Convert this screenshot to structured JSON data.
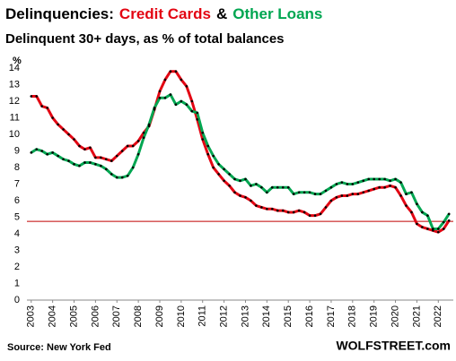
{
  "chart_data": {
    "type": "line",
    "title_parts": [
      {
        "text": "Delinquencies:",
        "color": "#000000"
      },
      {
        "text": "Credit Cards",
        "color": "#e30613"
      },
      {
        "text": "&",
        "color": "#000000"
      },
      {
        "text": "Other Loans",
        "color": "#00a651"
      }
    ],
    "subtitle": "Delinquent 30+ days, as % of total balances",
    "y_label": "%",
    "source": "Source: New York Fed",
    "credit": "WOLFSTREET.com",
    "x": [
      2003,
      2003.25,
      2003.5,
      2003.75,
      2004,
      2004.25,
      2004.5,
      2004.75,
      2005,
      2005.25,
      2005.5,
      2005.75,
      2006,
      2006.25,
      2006.5,
      2006.75,
      2007,
      2007.25,
      2007.5,
      2007.75,
      2008,
      2008.25,
      2008.5,
      2008.75,
      2009,
      2009.25,
      2009.5,
      2009.75,
      2010,
      2010.25,
      2010.5,
      2010.75,
      2011,
      2011.25,
      2011.5,
      2011.75,
      2012,
      2012.25,
      2012.5,
      2012.75,
      2013,
      2013.25,
      2013.5,
      2013.75,
      2014,
      2014.25,
      2014.5,
      2014.75,
      2015,
      2015.25,
      2015.5,
      2015.75,
      2016,
      2016.25,
      2016.5,
      2016.75,
      2017,
      2017.25,
      2017.5,
      2017.75,
      2018,
      2018.25,
      2018.5,
      2018.75,
      2019,
      2019.25,
      2019.5,
      2019.75,
      2020,
      2020.25,
      2020.5,
      2020.75,
      2021,
      2021.25,
      2021.5,
      2021.75,
      2022,
      2022.25,
      2022.5
    ],
    "series": [
      {
        "name": "Credit Cards",
        "color": "#e30613",
        "values": [
          12.3,
          12.3,
          11.7,
          11.6,
          11.0,
          10.6,
          10.3,
          10.0,
          9.7,
          9.3,
          9.1,
          9.2,
          8.6,
          8.6,
          8.5,
          8.4,
          8.7,
          9.0,
          9.3,
          9.3,
          9.6,
          10.1,
          10.5,
          11.5,
          12.6,
          13.3,
          13.8,
          13.8,
          13.3,
          12.9,
          12.0,
          10.9,
          9.7,
          8.8,
          8.0,
          7.6,
          7.2,
          6.9,
          6.5,
          6.3,
          6.2,
          6.0,
          5.7,
          5.6,
          5.5,
          5.5,
          5.4,
          5.4,
          5.3,
          5.3,
          5.4,
          5.3,
          5.1,
          5.1,
          5.2,
          5.6,
          6.0,
          6.2,
          6.3,
          6.3,
          6.4,
          6.4,
          6.5,
          6.6,
          6.7,
          6.8,
          6.8,
          6.9,
          6.8,
          6.3,
          5.7,
          5.3,
          4.6,
          4.4,
          4.3,
          4.2,
          4.1,
          4.3,
          4.8
        ]
      },
      {
        "name": "Other Loans",
        "color": "#00a651",
        "values": [
          8.9,
          9.1,
          9.0,
          8.8,
          8.9,
          8.7,
          8.5,
          8.4,
          8.2,
          8.1,
          8.3,
          8.3,
          8.2,
          8.1,
          7.9,
          7.6,
          7.4,
          7.4,
          7.5,
          8.0,
          8.8,
          9.8,
          10.6,
          11.6,
          12.2,
          12.2,
          12.4,
          11.8,
          12.0,
          11.8,
          11.4,
          11.3,
          10.1,
          9.3,
          8.7,
          8.2,
          7.9,
          7.6,
          7.3,
          7.2,
          7.3,
          6.9,
          7.0,
          6.8,
          6.5,
          6.8,
          6.8,
          6.8,
          6.8,
          6.4,
          6.5,
          6.5,
          6.5,
          6.4,
          6.4,
          6.6,
          6.8,
          7.0,
          7.1,
          7.0,
          7.0,
          7.1,
          7.2,
          7.3,
          7.3,
          7.3,
          7.3,
          7.2,
          7.3,
          7.1,
          6.4,
          6.5,
          5.8,
          5.3,
          5.1,
          4.3,
          4.3,
          4.7,
          5.2
        ]
      }
    ],
    "hline": {
      "value": 4.75,
      "color": "#c00000"
    },
    "markers": true,
    "marker_color": "#000000",
    "xlim": [
      2002.8,
      2022.7
    ],
    "xticks": [
      2003,
      2004,
      2005,
      2006,
      2007,
      2008,
      2009,
      2010,
      2011,
      2012,
      2013,
      2014,
      2015,
      2016,
      2017,
      2018,
      2019,
      2020,
      2021,
      2022
    ],
    "ylim": [
      0,
      14
    ],
    "yticks": [
      0,
      1,
      2,
      3,
      4,
      5,
      6,
      7,
      8,
      9,
      10,
      11,
      12,
      13,
      14
    ]
  }
}
